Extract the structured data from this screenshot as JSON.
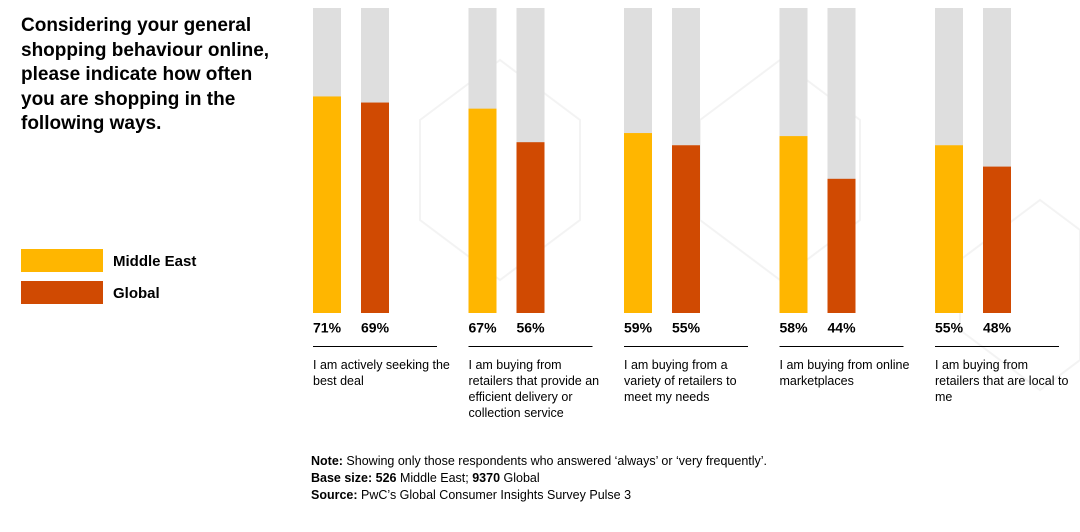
{
  "chart_data": {
    "type": "bar",
    "title": "Considering your general shopping behaviour online, please indicate how often you are shopping in the following ways.",
    "categories": [
      "I am actively seeking the best deal",
      "I am buying from retailers that provide an efficient delivery or collection service",
      "I am buying from a variety of retailers to meet my needs",
      "I am buying from online marketplaces",
      "I am buying from retailers that are local to me"
    ],
    "series": [
      {
        "name": "Middle East",
        "color": "#ffb600",
        "values": [
          71,
          67,
          59,
          58,
          55
        ],
        "value_labels": [
          "71%",
          "67%",
          "59%",
          "58%",
          "55%"
        ]
      },
      {
        "name": "Global",
        "color": "#d04a02",
        "values": [
          69,
          56,
          55,
          44,
          48
        ],
        "value_labels": [
          "69%",
          "56%",
          "55%",
          "44%",
          "48%"
        ]
      }
    ],
    "ylim": [
      0,
      100
    ],
    "track_color": "#dedede"
  },
  "notes": [
    [
      {
        "text": "Note:",
        "bold": true
      },
      {
        "text": " Showing only those respondents who answered ‘always’ or ‘very frequently’."
      }
    ],
    [
      {
        "text": "Base size:",
        "bold": true
      },
      {
        "text": " "
      },
      {
        "text": "526",
        "bold": true
      },
      {
        "text": " Middle East; "
      },
      {
        "text": "9370",
        "bold": true
      },
      {
        "text": " Global"
      }
    ],
    [
      {
        "text": "Source:",
        "bold": true
      },
      {
        "text": " PwC’s Global Consumer Insights Survey Pulse 3"
      }
    ]
  ]
}
